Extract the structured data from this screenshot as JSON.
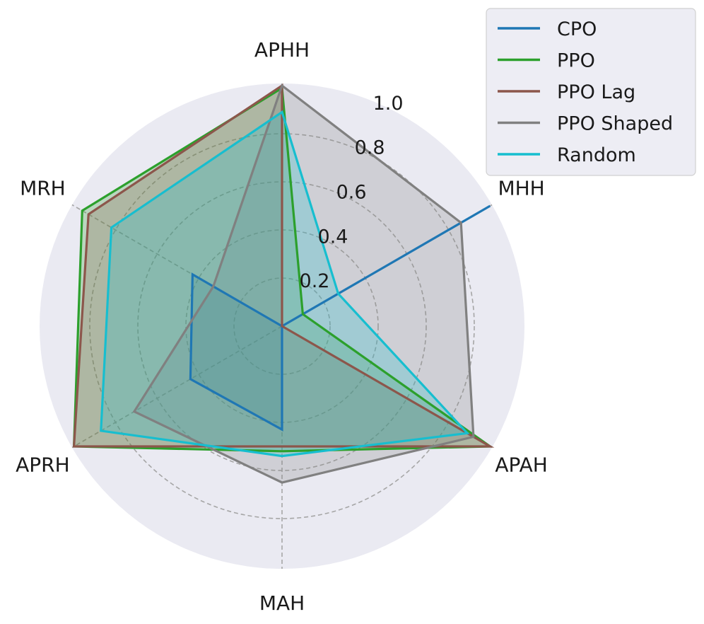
{
  "chart_data": {
    "type": "radar",
    "axes": [
      "APHH",
      "MHH",
      "APAH",
      "MAH",
      "APRH",
      "MRH"
    ],
    "radial_ticks": [
      "0.2",
      "0.4",
      "0.6",
      "0.8",
      "1.0"
    ],
    "radial_tick_values": [
      0.2,
      0.4,
      0.6,
      0.8,
      1.0
    ],
    "rlim": [
      0,
      1.0
    ],
    "grid": true,
    "legend_position": "top-right",
    "series": [
      {
        "name": "CPO",
        "color": "#1f77b4",
        "values": [
          0.0,
          1.0,
          0.0,
          0.43,
          0.44,
          0.43
        ]
      },
      {
        "name": "PPO",
        "color": "#2ca02c",
        "values": [
          0.99,
          0.1,
          1.0,
          0.52,
          1.0,
          0.96
        ]
      },
      {
        "name": "PPO Lag",
        "color": "#8c564b",
        "values": [
          1.0,
          0.0,
          1.0,
          0.5,
          1.0,
          0.93
        ]
      },
      {
        "name": "PPO Shaped",
        "color": "#808080",
        "values": [
          1.0,
          0.86,
          0.92,
          0.65,
          0.71,
          0.33
        ]
      },
      {
        "name": "Random",
        "color": "#17becf",
        "values": [
          0.89,
          0.27,
          0.89,
          0.54,
          0.87,
          0.82
        ]
      }
    ]
  }
}
